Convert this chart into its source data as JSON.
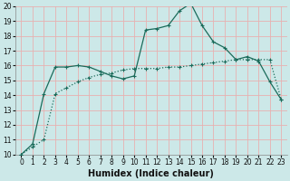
{
  "xlabel": "Humidex (Indice chaleur)",
  "background_color": "#cce8e8",
  "grid_color": "#e8b0b0",
  "line_color": "#1a6b5a",
  "xlim": [
    -0.5,
    23.5
  ],
  "ylim": [
    10,
    20
  ],
  "xticks": [
    0,
    1,
    2,
    3,
    4,
    5,
    6,
    7,
    8,
    9,
    10,
    11,
    12,
    13,
    14,
    15,
    16,
    17,
    18,
    19,
    20,
    21,
    22,
    23
  ],
  "yticks": [
    10,
    11,
    12,
    13,
    14,
    15,
    16,
    17,
    18,
    19,
    20
  ],
  "line_solid_x": [
    0,
    1,
    2,
    3,
    4,
    5,
    6,
    7,
    8,
    9,
    10,
    11,
    12,
    13,
    14,
    15,
    16,
    17,
    18,
    19,
    20,
    21,
    22,
    23
  ],
  "line_solid_y": [
    10.0,
    10.7,
    14.1,
    15.9,
    15.9,
    16.0,
    15.9,
    15.6,
    15.3,
    15.1,
    15.3,
    18.4,
    18.5,
    18.7,
    19.7,
    20.2,
    18.7,
    17.6,
    17.2,
    16.4,
    16.6,
    16.3,
    14.9,
    13.7
  ],
  "line_dotted_x": [
    0,
    1,
    2,
    3,
    4,
    5,
    6,
    7,
    8,
    9,
    10,
    11,
    12,
    13,
    14,
    15,
    16,
    17,
    18,
    19,
    20,
    21,
    22,
    23
  ],
  "line_dotted_y": [
    10.0,
    10.5,
    11.0,
    14.1,
    14.5,
    14.9,
    15.2,
    15.4,
    15.5,
    15.7,
    15.8,
    15.8,
    15.8,
    15.9,
    15.9,
    16.0,
    16.1,
    16.2,
    16.3,
    16.4,
    16.4,
    16.4,
    16.4,
    13.7
  ],
  "xlabel_fontsize": 7,
  "tick_fontsize": 5.5,
  "linewidth": 0.9,
  "markersize": 3
}
